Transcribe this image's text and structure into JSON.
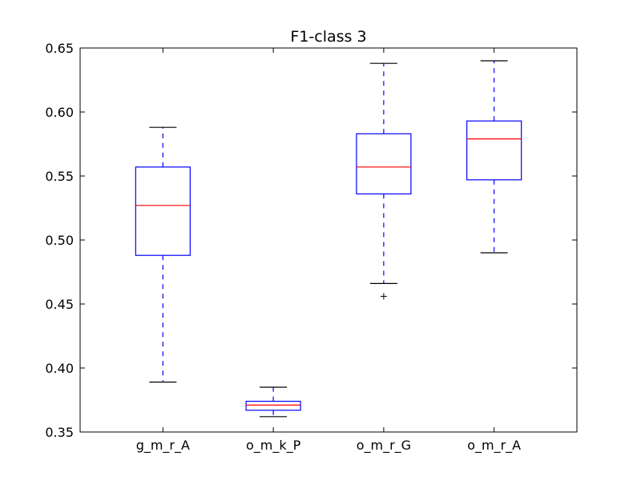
{
  "chart_data": {
    "type": "box",
    "title": "F1-class 3",
    "xlabel": "",
    "ylabel": "",
    "ylim": [
      0.35,
      0.65
    ],
    "yticks": [
      "0.35",
      "0.40",
      "0.45",
      "0.50",
      "0.55",
      "0.60",
      "0.65"
    ],
    "grid": false,
    "legend": "none",
    "categories": [
      "g_m_r_A",
      "o_m_k_P",
      "o_m_r_G",
      "o_m_r_A"
    ],
    "boxes": [
      {
        "whisker_low": 0.389,
        "q1": 0.488,
        "median": 0.527,
        "q3": 0.557,
        "whisker_high": 0.588,
        "outliers": []
      },
      {
        "whisker_low": 0.362,
        "q1": 0.367,
        "median": 0.371,
        "q3": 0.374,
        "whisker_high": 0.385,
        "outliers": []
      },
      {
        "whisker_low": 0.466,
        "q1": 0.536,
        "median": 0.557,
        "q3": 0.583,
        "whisker_high": 0.638,
        "outliers": [
          0.456
        ]
      },
      {
        "whisker_low": 0.49,
        "q1": 0.547,
        "median": 0.579,
        "q3": 0.593,
        "whisker_high": 0.64,
        "outliers": []
      }
    ],
    "colors": {
      "box": "#0000ff",
      "whisker": "#0000ff",
      "cap": "#000000",
      "median": "#ff0000",
      "outlier": "#000000",
      "axes": "#000000"
    }
  }
}
